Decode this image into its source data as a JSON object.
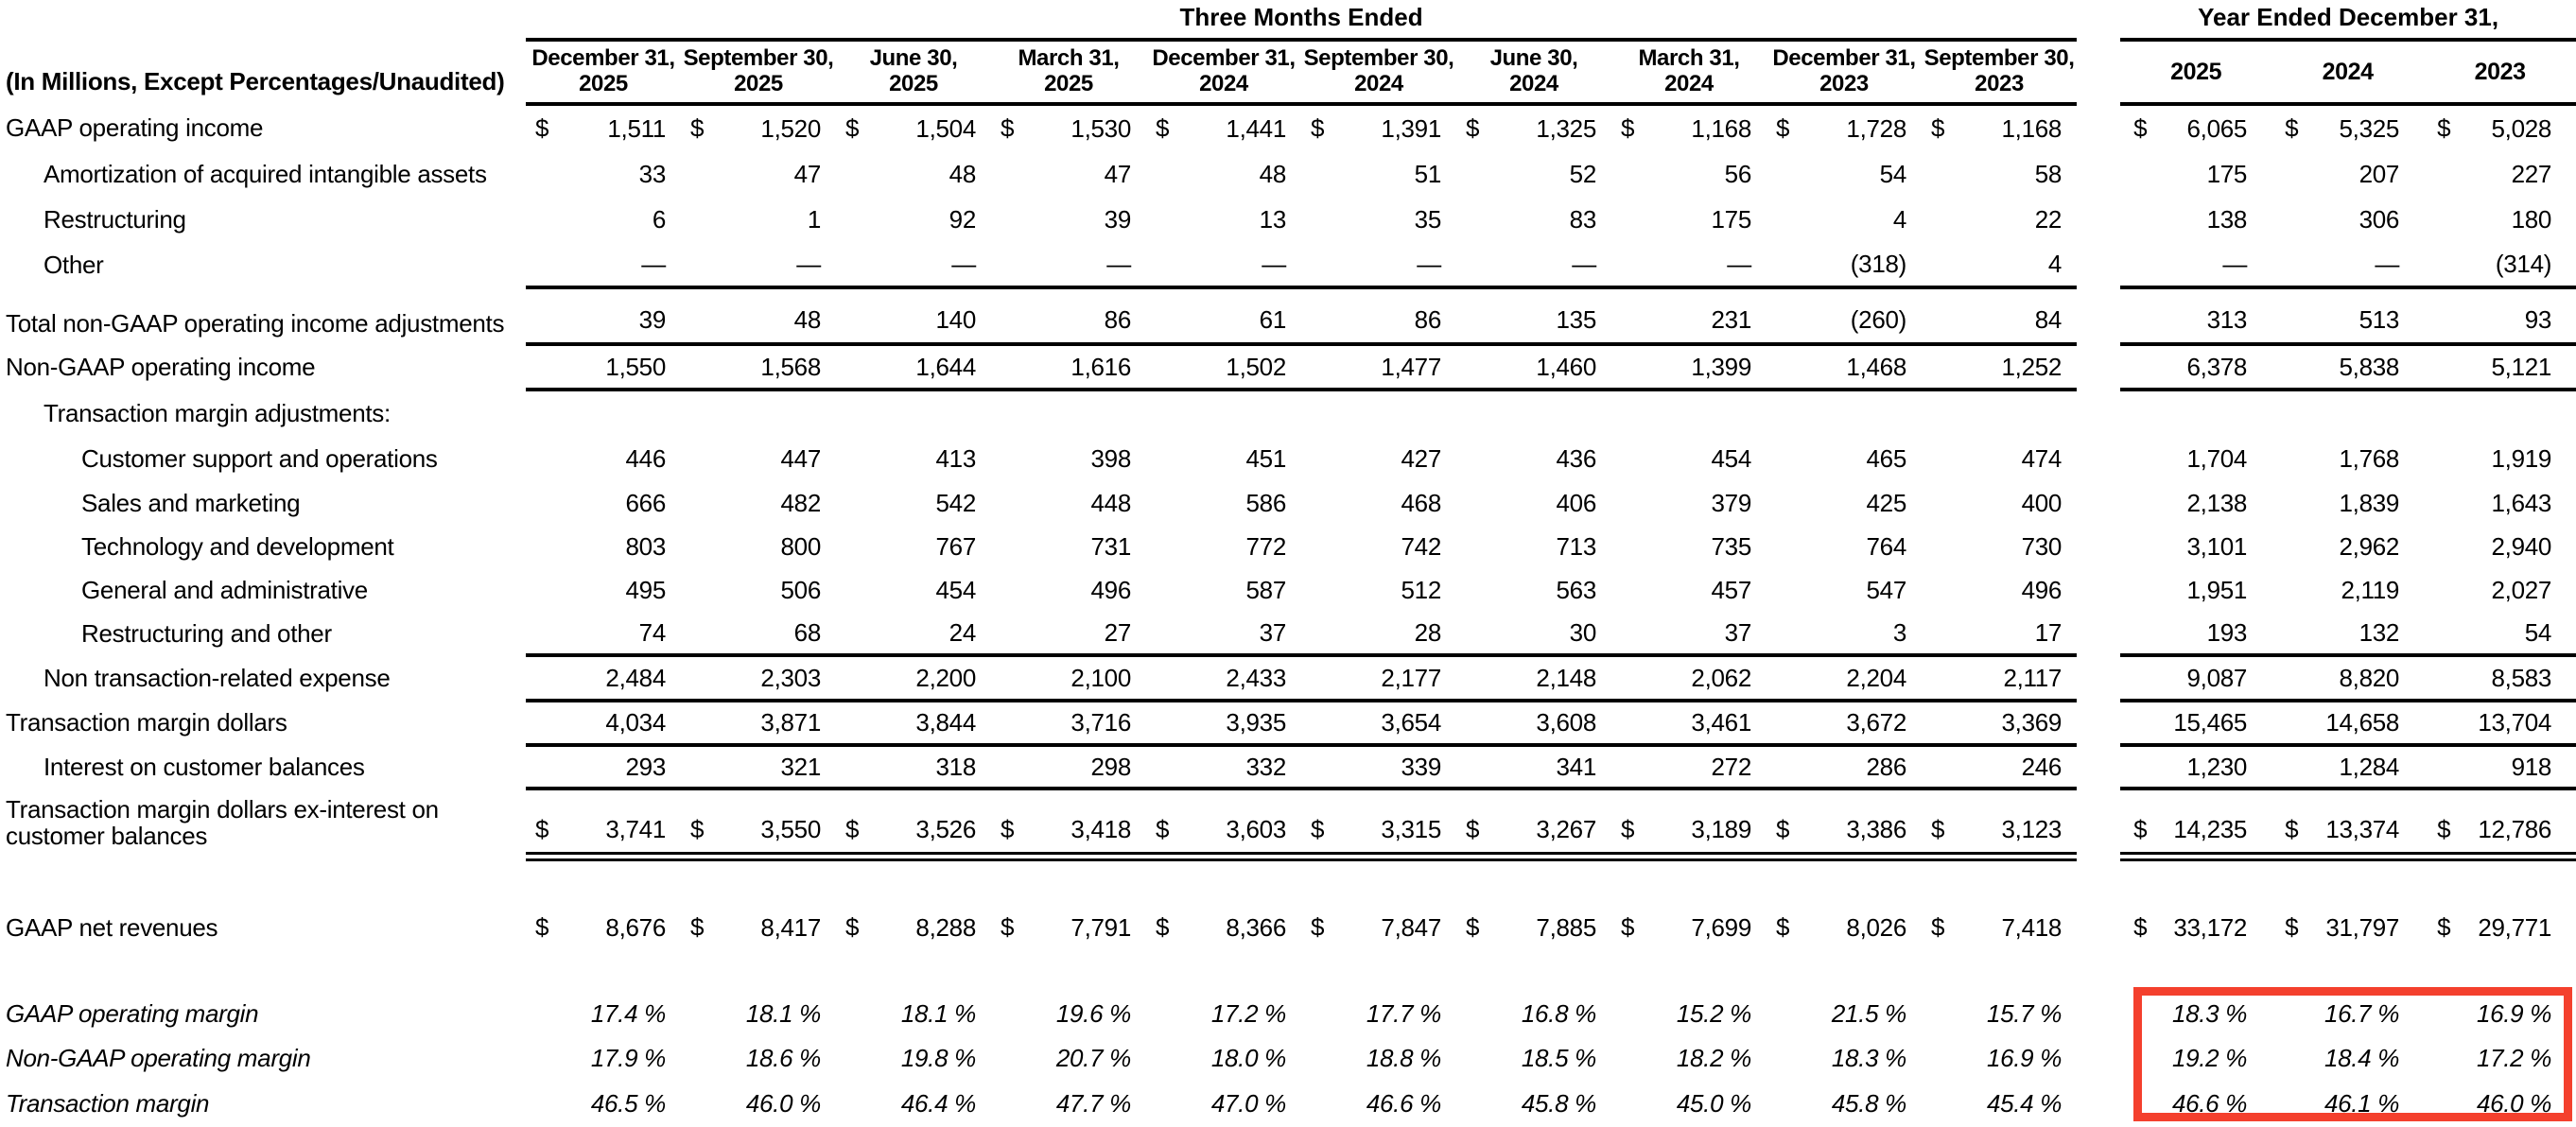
{
  "page": {
    "background": "#ffffff",
    "text_color": "#000000"
  },
  "annotation": {
    "highlight_box_color": "#f4402d",
    "highlighted_rows": [
      "GAAP operating margin",
      "Non-GAAP operating margin",
      "Transaction margin"
    ],
    "highlighted_columns": [
      "2025",
      "2024",
      "2023"
    ]
  },
  "table": {
    "unit_label": "(In Millions, Except Percentages/Unaudited)",
    "groups": {
      "three_months": "Three Months Ended",
      "year_ended": "Year Ended December 31,"
    },
    "period_headers": [
      {
        "line1": "December 31,",
        "line2": "2025"
      },
      {
        "line1": "September 30,",
        "line2": "2025"
      },
      {
        "line1": "June 30,",
        "line2": "2025"
      },
      {
        "line1": "March 31,",
        "line2": "2025"
      },
      {
        "line1": "December 31,",
        "line2": "2024"
      },
      {
        "line1": "September 30,",
        "line2": "2024"
      },
      {
        "line1": "June 30,",
        "line2": "2024"
      },
      {
        "line1": "March 31,",
        "line2": "2024"
      },
      {
        "line1": "December 31,",
        "line2": "2023"
      },
      {
        "line1": "September 30,",
        "line2": "2023"
      }
    ],
    "year_headers": [
      "2025",
      "2024",
      "2023"
    ],
    "rows": [
      {
        "label": "GAAP operating income",
        "indent": 0,
        "dollar": true,
        "rule": "",
        "italic": false,
        "highlight": false,
        "values": [
          "1,511",
          "1,520",
          "1,504",
          "1,530",
          "1,441",
          "1,391",
          "1,325",
          "1,168",
          "1,728",
          "1,168"
        ],
        "years": [
          "6,065",
          "5,325",
          "5,028"
        ]
      },
      {
        "label": "Amortization of acquired intangible assets",
        "indent": 1,
        "dollar": false,
        "rule": "",
        "italic": false,
        "highlight": false,
        "values": [
          "33",
          "47",
          "48",
          "47",
          "48",
          "51",
          "52",
          "56",
          "54",
          "58"
        ],
        "years": [
          "175",
          "207",
          "227"
        ]
      },
      {
        "label": "Restructuring",
        "indent": 1,
        "dollar": false,
        "rule": "",
        "italic": false,
        "highlight": false,
        "values": [
          "6",
          "1",
          "92",
          "39",
          "13",
          "35",
          "83",
          "175",
          "4",
          "22"
        ],
        "years": [
          "138",
          "306",
          "180"
        ]
      },
      {
        "label": "Other",
        "indent": 1,
        "dollar": false,
        "rule": "single",
        "italic": false,
        "highlight": false,
        "values": [
          "—",
          "—",
          "—",
          "—",
          "—",
          "—",
          "—",
          "—",
          "(318)",
          "4"
        ],
        "years": [
          "—",
          "—",
          "(314)"
        ]
      },
      {
        "label": "Total non-GAAP operating income adjustments",
        "indent": 0,
        "dollar": false,
        "rule": "single",
        "italic": false,
        "highlight": false,
        "values": [
          "39",
          "48",
          "140",
          "86",
          "61",
          "86",
          "135",
          "231",
          "(260)",
          "84"
        ],
        "years": [
          "313",
          "513",
          "93"
        ]
      },
      {
        "label": "Non-GAAP operating income",
        "indent": 0,
        "dollar": false,
        "rule": "single",
        "italic": false,
        "highlight": false,
        "values": [
          "1,550",
          "1,568",
          "1,644",
          "1,616",
          "1,502",
          "1,477",
          "1,460",
          "1,399",
          "1,468",
          "1,252"
        ],
        "years": [
          "6,378",
          "5,838",
          "5,121"
        ]
      },
      {
        "label": "Transaction margin adjustments:",
        "indent": 1,
        "dollar": false,
        "rule": "",
        "italic": false,
        "highlight": false,
        "values": [
          "",
          "",
          "",
          "",
          "",
          "",
          "",
          "",
          "",
          ""
        ],
        "years": [
          "",
          "",
          ""
        ]
      },
      {
        "label": "Customer support and operations",
        "indent": 2,
        "dollar": false,
        "rule": "",
        "italic": false,
        "highlight": false,
        "values": [
          "446",
          "447",
          "413",
          "398",
          "451",
          "427",
          "436",
          "454",
          "465",
          "474"
        ],
        "years": [
          "1,704",
          "1,768",
          "1,919"
        ]
      },
      {
        "label": "Sales and marketing",
        "indent": 2,
        "dollar": false,
        "rule": "",
        "italic": false,
        "highlight": false,
        "values": [
          "666",
          "482",
          "542",
          "448",
          "586",
          "468",
          "406",
          "379",
          "425",
          "400"
        ],
        "years": [
          "2,138",
          "1,839",
          "1,643"
        ]
      },
      {
        "label": "Technology and development",
        "indent": 2,
        "dollar": false,
        "rule": "",
        "italic": false,
        "highlight": false,
        "values": [
          "803",
          "800",
          "767",
          "731",
          "772",
          "742",
          "713",
          "735",
          "764",
          "730"
        ],
        "years": [
          "3,101",
          "2,962",
          "2,940"
        ]
      },
      {
        "label": "General and administrative",
        "indent": 2,
        "dollar": false,
        "rule": "",
        "italic": false,
        "highlight": false,
        "values": [
          "495",
          "506",
          "454",
          "496",
          "587",
          "512",
          "563",
          "457",
          "547",
          "496"
        ],
        "years": [
          "1,951",
          "2,119",
          "2,027"
        ]
      },
      {
        "label": "Restructuring and other",
        "indent": 2,
        "dollar": false,
        "rule": "single",
        "italic": false,
        "highlight": false,
        "values": [
          "74",
          "68",
          "24",
          "27",
          "37",
          "28",
          "30",
          "37",
          "3",
          "17"
        ],
        "years": [
          "193",
          "132",
          "54"
        ]
      },
      {
        "label": "Non transaction-related expense",
        "indent": 1,
        "dollar": false,
        "rule": "single",
        "italic": false,
        "highlight": false,
        "values": [
          "2,484",
          "2,303",
          "2,200",
          "2,100",
          "2,433",
          "2,177",
          "2,148",
          "2,062",
          "2,204",
          "2,117"
        ],
        "years": [
          "9,087",
          "8,820",
          "8,583"
        ]
      },
      {
        "label": "Transaction margin dollars",
        "indent": 0,
        "dollar": false,
        "rule": "single",
        "italic": false,
        "highlight": false,
        "values": [
          "4,034",
          "3,871",
          "3,844",
          "3,716",
          "3,935",
          "3,654",
          "3,608",
          "3,461",
          "3,672",
          "3,369"
        ],
        "years": [
          "15,465",
          "14,658",
          "13,704"
        ]
      },
      {
        "label": "Interest on customer balances",
        "indent": 1,
        "dollar": false,
        "rule": "single",
        "italic": false,
        "highlight": false,
        "values": [
          "293",
          "321",
          "318",
          "298",
          "332",
          "339",
          "341",
          "272",
          "286",
          "246"
        ],
        "years": [
          "1,230",
          "1,284",
          "918"
        ]
      },
      {
        "label": "Transaction margin dollars ex-interest on customer balances",
        "indent": 0,
        "dollar": true,
        "rule": "double",
        "italic": false,
        "highlight": false,
        "values": [
          "3,741",
          "3,550",
          "3,526",
          "3,418",
          "3,603",
          "3,315",
          "3,267",
          "3,189",
          "3,386",
          "3,123"
        ],
        "years": [
          "14,235",
          "13,374",
          "12,786"
        ]
      },
      {
        "label": "GAAP net revenues",
        "indent": 0,
        "dollar": true,
        "rule": "",
        "italic": false,
        "highlight": false,
        "values": [
          "8,676",
          "8,417",
          "8,288",
          "7,791",
          "8,366",
          "7,847",
          "7,885",
          "7,699",
          "8,026",
          "7,418"
        ],
        "years": [
          "33,172",
          "31,797",
          "29,771"
        ]
      },
      {
        "label": "GAAP operating margin",
        "indent": 0,
        "dollar": false,
        "rule": "",
        "italic": true,
        "highlight": true,
        "values": [
          "17.4 %",
          "18.1 %",
          "18.1 %",
          "19.6 %",
          "17.2 %",
          "17.7 %",
          "16.8 %",
          "15.2 %",
          "21.5 %",
          "15.7 %"
        ],
        "years": [
          "18.3 %",
          "16.7 %",
          "16.9 %"
        ]
      },
      {
        "label": "Non-GAAP operating margin",
        "indent": 0,
        "dollar": false,
        "rule": "",
        "italic": true,
        "highlight": true,
        "values": [
          "17.9 %",
          "18.6 %",
          "19.8 %",
          "20.7 %",
          "18.0 %",
          "18.8 %",
          "18.5 %",
          "18.2 %",
          "18.3 %",
          "16.9 %"
        ],
        "years": [
          "19.2 %",
          "18.4 %",
          "17.2 %"
        ]
      },
      {
        "label": "Transaction margin",
        "indent": 0,
        "dollar": false,
        "rule": "",
        "italic": true,
        "highlight": true,
        "values": [
          "46.5 %",
          "46.0 %",
          "46.4 %",
          "47.7 %",
          "47.0 %",
          "46.6 %",
          "45.8 %",
          "45.0 %",
          "45.8 %",
          "45.4 %"
        ],
        "years": [
          "46.6 %",
          "46.1 %",
          "46.0 %"
        ]
      }
    ]
  }
}
